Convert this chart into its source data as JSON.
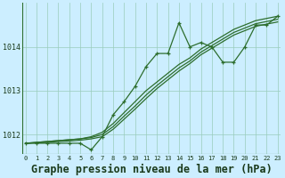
{
  "bg_color": "#cceeff",
  "grid_color": "#99ccbb",
  "line_color": "#2d6e2d",
  "xlabel": "Graphe pression niveau de la mer (hPa)",
  "yticks": [
    1012,
    1013,
    1014
  ],
  "xticks": [
    0,
    1,
    2,
    3,
    4,
    5,
    6,
    7,
    8,
    9,
    10,
    11,
    12,
    13,
    14,
    15,
    16,
    17,
    18,
    19,
    20,
    21,
    22,
    23
  ],
  "xlim": [
    -0.3,
    23.3
  ],
  "ylim": [
    1011.55,
    1015.0
  ],
  "series1": [
    1011.8,
    1011.8,
    1011.8,
    1011.8,
    1011.8,
    1011.8,
    1011.65,
    1011.95,
    1012.45,
    1012.75,
    1013.1,
    1013.55,
    1013.85,
    1013.85,
    1014.55,
    1014.0,
    1014.1,
    1014.0,
    1013.65,
    1013.65,
    1014.0,
    1014.5,
    1014.5,
    1014.7
  ],
  "series2": [
    1011.8,
    1011.82,
    1011.84,
    1011.86,
    1011.88,
    1011.9,
    1011.95,
    1012.05,
    1012.25,
    1012.5,
    1012.75,
    1013.0,
    1013.2,
    1013.4,
    1013.6,
    1013.75,
    1013.95,
    1014.1,
    1014.25,
    1014.4,
    1014.5,
    1014.6,
    1014.65,
    1014.7
  ],
  "series3": [
    1011.8,
    1011.82,
    1011.84,
    1011.86,
    1011.88,
    1011.9,
    1011.93,
    1012.0,
    1012.18,
    1012.42,
    1012.65,
    1012.9,
    1013.12,
    1013.32,
    1013.52,
    1013.68,
    1013.88,
    1014.03,
    1014.18,
    1014.33,
    1014.43,
    1014.53,
    1014.58,
    1014.63
  ],
  "series4": [
    1011.8,
    1011.81,
    1011.82,
    1011.84,
    1011.85,
    1011.87,
    1011.9,
    1011.95,
    1012.12,
    1012.35,
    1012.58,
    1012.82,
    1013.05,
    1013.25,
    1013.45,
    1013.62,
    1013.82,
    1013.97,
    1014.12,
    1014.27,
    1014.37,
    1014.47,
    1014.52,
    1014.57
  ]
}
